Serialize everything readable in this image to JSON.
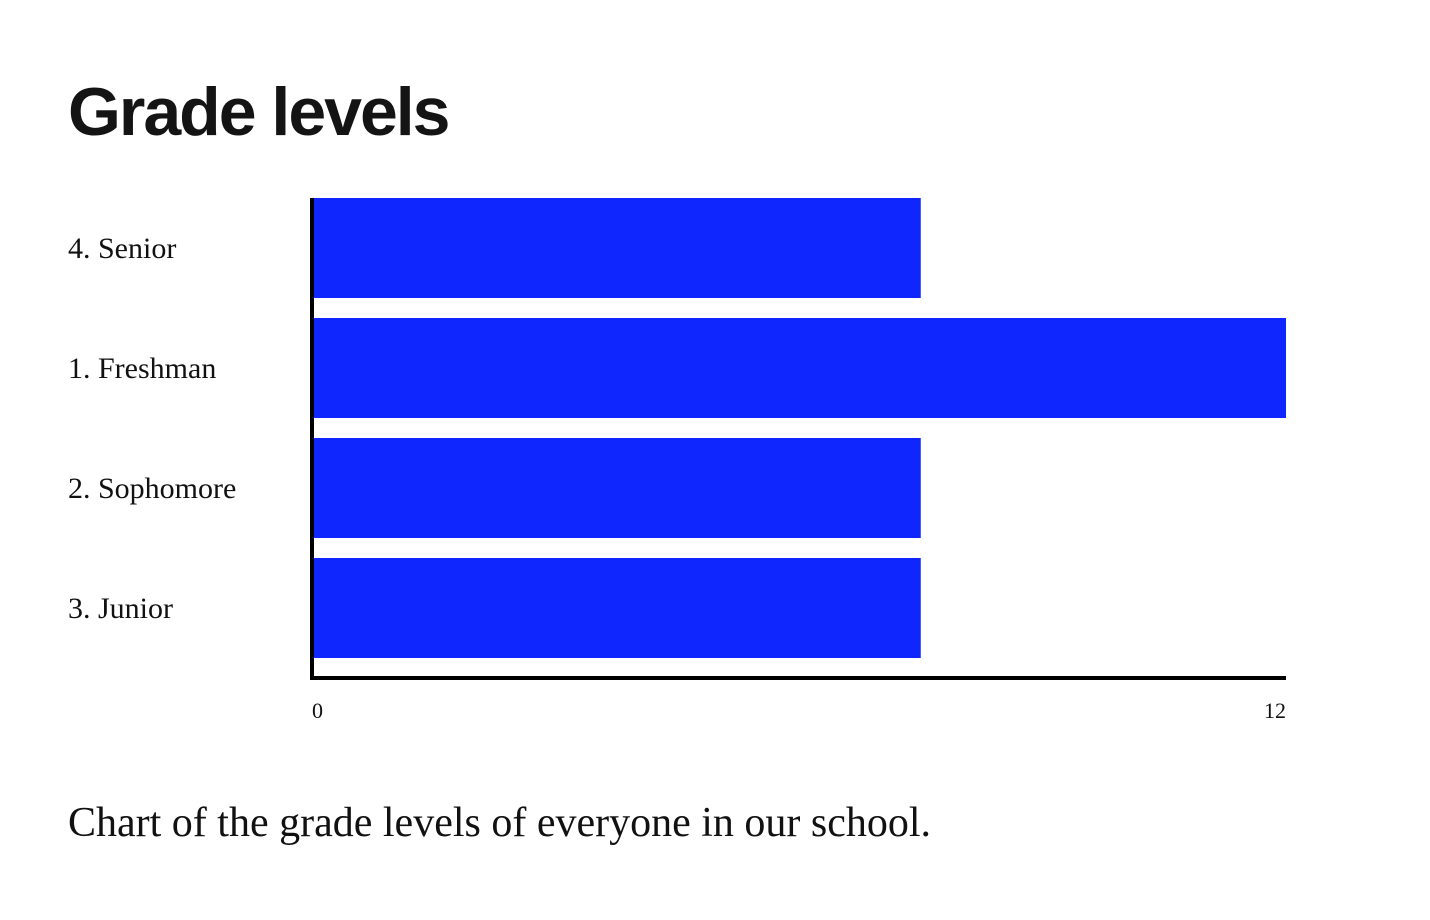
{
  "title": "Grade levels",
  "caption": "Chart of the grade levels of everyone in our school.",
  "colors": {
    "bar": "#0f26ff",
    "axis": "#000000",
    "text": "#111111"
  },
  "chart_data": {
    "type": "bar",
    "orientation": "horizontal",
    "title": "Grade levels",
    "xlabel": "",
    "ylabel": "",
    "categories": [
      "4. Senior",
      "1. Freshman",
      "2. Sophomore",
      "3. Junior"
    ],
    "values": [
      7.5,
      12,
      7.5,
      7.5
    ],
    "xlim": [
      0,
      12
    ],
    "xticks": [
      "0",
      "12"
    ],
    "grid": false,
    "legend": "none"
  }
}
